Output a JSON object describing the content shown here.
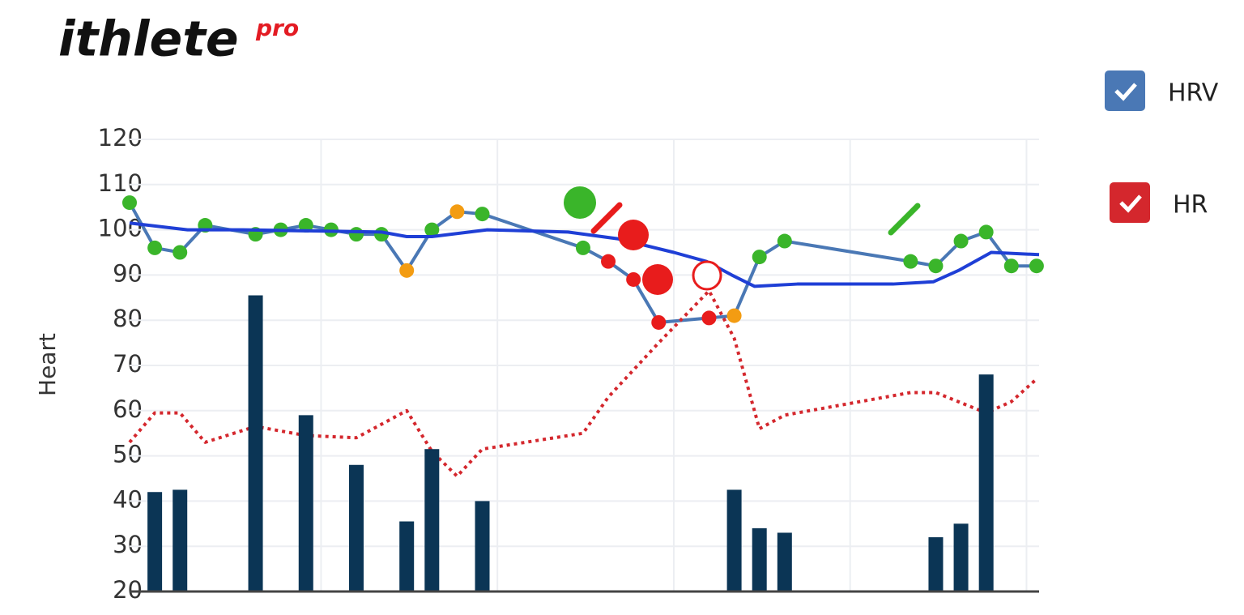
{
  "header": {
    "logo": "ithlete",
    "logo_suffix": "pro"
  },
  "chart_data": {
    "type": "line",
    "y_label": "Heart",
    "ylim": [
      20,
      120
    ],
    "yticks": [
      20,
      30,
      40,
      50,
      60,
      70,
      80,
      90,
      100,
      110,
      120
    ],
    "xlim": [
      0,
      36.1
    ],
    "xticks": [
      7.6,
      14.6,
      21.6,
      28.6,
      35.6
    ],
    "grid": true,
    "series": [
      {
        "name": "HRV",
        "color": "#4a78b5",
        "x": [
          0,
          1,
          2,
          3,
          5,
          6,
          7,
          8,
          9,
          10,
          11,
          12,
          13,
          14,
          18,
          19,
          20,
          21,
          23,
          24,
          25,
          26,
          31,
          32,
          33,
          34,
          35,
          36
        ],
        "values": [
          106,
          96,
          95,
          101,
          99,
          100,
          101,
          100,
          99,
          99,
          91,
          100,
          104,
          103.5,
          96,
          93,
          89,
          79.5,
          80.5,
          81,
          94,
          97.5,
          93,
          92,
          97.5,
          99.5,
          92,
          92
        ],
        "marker_colors": [
          "#3ab52a",
          "#3ab52a",
          "#3ab52a",
          "#3ab52a",
          "#3ab52a",
          "#3ab52a",
          "#3ab52a",
          "#3ab52a",
          "#3ab52a",
          "#3ab52a",
          "#f39c12",
          "#3ab52a",
          "#f39c12",
          "#3ab52a",
          "#3ab52a",
          "#e81c1c",
          "#e81c1c",
          "#e81c1c",
          "#e81c1c",
          "#f39c12",
          "#3ab52a",
          "#3ab52a",
          "#3ab52a",
          "#3ab52a",
          "#3ab52a",
          "#3ab52a",
          "#3ab52a",
          "#3ab52a"
        ]
      },
      {
        "color": "#1f3fd6",
        "x": [
          0,
          2.3,
          4.5,
          10,
          11,
          12,
          14.2,
          17.4,
          19.4,
          21.6,
          22.9,
          23.9,
          24.8,
          26.5,
          30.3,
          31.9,
          32.9,
          34.2,
          36.1
        ],
        "values": [
          101.5,
          100,
          100,
          99.5,
          98.5,
          98.5,
          100,
          99.5,
          98,
          95,
          93,
          90,
          87.5,
          88,
          88,
          88.5,
          91,
          95,
          94.5
        ]
      },
      {
        "name": "HR",
        "color": "#d4272d",
        "dash": true,
        "x": [
          0,
          1,
          2,
          3,
          5,
          6,
          7,
          9,
          11,
          12,
          13,
          14,
          18,
          19,
          21,
          23,
          24,
          25,
          26,
          31,
          32,
          34,
          35,
          36
        ],
        "values": [
          53,
          59.5,
          59.5,
          53,
          56.5,
          55.5,
          54.5,
          54,
          60,
          51,
          45.5,
          51.5,
          55,
          63,
          75,
          86.5,
          76,
          56,
          59,
          64,
          64,
          59.5,
          62,
          67
        ]
      },
      {
        "type": "bar",
        "color": "#0b3555",
        "x": [
          1,
          2,
          5,
          7,
          9,
          11,
          12,
          14,
          24,
          25,
          26,
          32,
          33,
          34
        ],
        "values": [
          42,
          42.5,
          85.5,
          59,
          48,
          35.5,
          51.5,
          40,
          42.5,
          34,
          33,
          32,
          35,
          68
        ]
      }
    ]
  }
}
